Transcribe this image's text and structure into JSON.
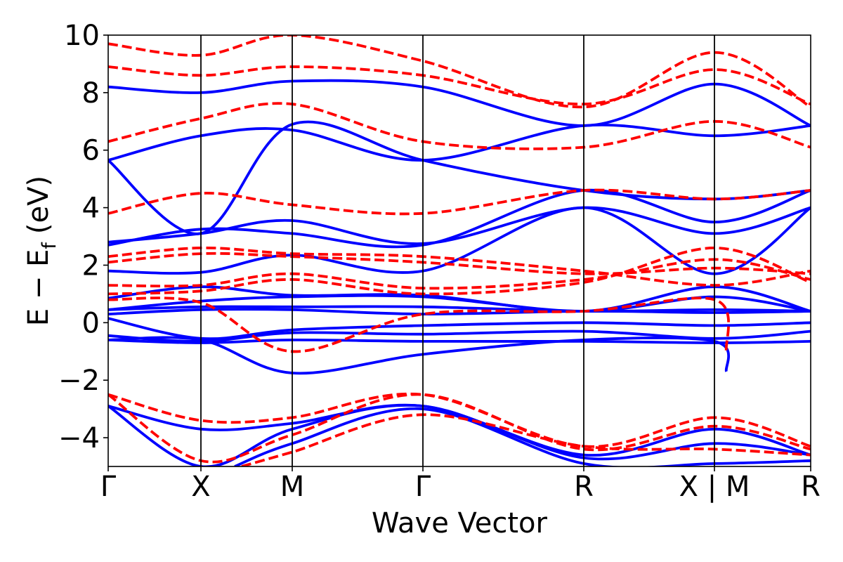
{
  "chart_data": {
    "type": "line",
    "xlabel": "Wave Vector",
    "ylabel": "E − E",
    "ylabel_subscript": "f",
    "ylabel_unit": "(eV)",
    "ylim": [
      -5,
      10
    ],
    "yticks": [
      -4,
      -2,
      0,
      2,
      4,
      6,
      8,
      10
    ],
    "ytick_labels": [
      "−4",
      "−2",
      "0",
      "2",
      "4",
      "6",
      "8",
      "10"
    ],
    "xlim": [
      0,
      1
    ],
    "kpoints": [
      {
        "label": "Γ",
        "x": 0.0
      },
      {
        "label": "X",
        "x": 0.132
      },
      {
        "label": "M",
        "x": 0.262
      },
      {
        "label": "Γ",
        "x": 0.448
      },
      {
        "label": "R",
        "x": 0.677
      },
      {
        "label": "X | M",
        "x": 0.863
      },
      {
        "label": "R",
        "x": 1.0
      }
    ],
    "grid": false,
    "legend": "none",
    "series_styles": [
      {
        "color": "#0000ff",
        "style": "solid"
      },
      {
        "color": "#ff0000",
        "style": "dashed"
      }
    ],
    "series": [
      {
        "color": "#0000ff",
        "style": "solid",
        "points": [
          [
            0,
            -0.6
          ],
          [
            0.132,
            -0.7
          ],
          [
            0.262,
            -0.6
          ],
          [
            0.448,
            -0.65
          ],
          [
            0.677,
            -0.65
          ],
          [
            0.863,
            -0.7
          ],
          [
            1.0,
            -0.65
          ]
        ]
      },
      {
        "color": "#0000ff",
        "style": "solid",
        "points": [
          [
            0,
            -0.45
          ],
          [
            0.132,
            -0.65
          ],
          [
            0.262,
            -0.35
          ],
          [
            0.448,
            -0.4
          ],
          [
            0.677,
            -0.3
          ],
          [
            0.863,
            -0.55
          ],
          [
            1.0,
            -0.3
          ]
        ]
      },
      {
        "color": "#0000ff",
        "style": "solid",
        "points": [
          [
            0,
            0.15
          ],
          [
            0.132,
            -0.55
          ],
          [
            0.262,
            -0.25
          ],
          [
            0.448,
            -0.1
          ],
          [
            0.677,
            0.0
          ],
          [
            0.863,
            -0.1
          ],
          [
            1.0,
            0.0
          ]
        ]
      },
      {
        "color": "#0000ff",
        "style": "solid",
        "points": [
          [
            0,
            0.3
          ],
          [
            0.132,
            0.45
          ],
          [
            0.262,
            0.45
          ],
          [
            0.448,
            0.3
          ],
          [
            0.677,
            0.4
          ],
          [
            0.863,
            0.35
          ],
          [
            1.0,
            0.4
          ]
        ]
      },
      {
        "color": "#0000ff",
        "style": "solid",
        "points": [
          [
            0,
            0.45
          ],
          [
            0.132,
            0.55
          ],
          [
            0.262,
            0.55
          ],
          [
            0.448,
            0.55
          ],
          [
            0.677,
            0.4
          ],
          [
            0.863,
            0.45
          ],
          [
            1.0,
            0.4
          ]
        ]
      },
      {
        "color": "#0000ff",
        "style": "solid",
        "points": [
          [
            0,
            0.45
          ],
          [
            0.132,
            0.75
          ],
          [
            0.262,
            0.9
          ],
          [
            0.448,
            0.9
          ],
          [
            0.677,
            0.4
          ],
          [
            0.863,
            0.9
          ],
          [
            1.0,
            0.4
          ]
        ]
      },
      {
        "color": "#0000ff",
        "style": "solid",
        "points": [
          [
            0,
            0.85
          ],
          [
            0.132,
            1.25
          ],
          [
            0.262,
            0.95
          ],
          [
            0.448,
            0.95
          ],
          [
            0.677,
            0.4
          ],
          [
            0.863,
            1.25
          ],
          [
            1.0,
            0.4
          ]
        ]
      },
      {
        "color": "#0000ff",
        "style": "solid",
        "points": [
          [
            0,
            -0.6
          ],
          [
            0.132,
            -0.6
          ],
          [
            0.262,
            -1.75
          ],
          [
            0.448,
            -1.1
          ],
          [
            0.677,
            -0.6
          ],
          [
            0.863,
            -0.65
          ],
          [
            0.88,
            -1.7
          ]
        ]
      },
      {
        "color": "#0000ff",
        "style": "solid",
        "points": [
          [
            0,
            1.8
          ],
          [
            0.132,
            1.75
          ],
          [
            0.262,
            2.35
          ],
          [
            0.448,
            1.8
          ],
          [
            0.677,
            4.0
          ],
          [
            0.863,
            1.7
          ],
          [
            1.0,
            4.0
          ]
        ]
      },
      {
        "color": "#0000ff",
        "style": "solid",
        "points": [
          [
            0,
            2.8
          ],
          [
            0.132,
            3.1
          ],
          [
            0.262,
            3.55
          ],
          [
            0.448,
            2.75
          ],
          [
            0.677,
            4.0
          ],
          [
            0.863,
            3.1
          ],
          [
            1.0,
            4.0
          ]
        ]
      },
      {
        "color": "#0000ff",
        "style": "solid",
        "points": [
          [
            0,
            2.7
          ],
          [
            0.132,
            3.25
          ],
          [
            0.262,
            3.1
          ],
          [
            0.448,
            2.7
          ],
          [
            0.677,
            4.6
          ],
          [
            0.863,
            3.5
          ],
          [
            1.0,
            4.6
          ]
        ]
      },
      {
        "color": "#0000ff",
        "style": "solid",
        "points": [
          [
            0,
            5.65
          ],
          [
            0.132,
            3.1
          ],
          [
            0.262,
            6.9
          ],
          [
            0.448,
            5.65
          ],
          [
            0.677,
            4.6
          ],
          [
            0.863,
            4.3
          ],
          [
            1.0,
            4.6
          ]
        ]
      },
      {
        "color": "#0000ff",
        "style": "solid",
        "points": [
          [
            0,
            5.65
          ],
          [
            0.132,
            6.5
          ],
          [
            0.262,
            6.7
          ],
          [
            0.448,
            5.65
          ],
          [
            0.677,
            6.85
          ],
          [
            0.863,
            6.5
          ],
          [
            1.0,
            6.85
          ]
        ]
      },
      {
        "color": "#0000ff",
        "style": "solid",
        "points": [
          [
            0,
            8.2
          ],
          [
            0.132,
            8.0
          ],
          [
            0.262,
            8.4
          ],
          [
            0.448,
            8.2
          ],
          [
            0.677,
            6.85
          ],
          [
            0.863,
            8.3
          ],
          [
            1.0,
            6.85
          ]
        ]
      },
      {
        "color": "#0000ff",
        "style": "solid",
        "points": [
          [
            0,
            -2.9
          ],
          [
            0.132,
            -3.7
          ],
          [
            0.262,
            -3.5
          ],
          [
            0.448,
            -2.9
          ],
          [
            0.677,
            -4.6
          ],
          [
            0.863,
            -3.7
          ],
          [
            1.0,
            -4.6
          ]
        ]
      },
      {
        "color": "#0000ff",
        "style": "solid",
        "points": [
          [
            0,
            -2.9
          ],
          [
            0.132,
            -5.0
          ],
          [
            0.262,
            -3.7
          ],
          [
            0.448,
            -2.9
          ],
          [
            0.677,
            -4.7
          ],
          [
            0.863,
            -4.2
          ],
          [
            1.0,
            -4.6
          ]
        ]
      },
      {
        "color": "#0000ff",
        "style": "solid",
        "points": [
          [
            0.18,
            -5.0
          ],
          [
            0.262,
            -4.2
          ],
          [
            0.448,
            -3.0
          ],
          [
            0.677,
            -4.9
          ],
          [
            0.863,
            -4.9
          ],
          [
            1.0,
            -4.8
          ]
        ]
      },
      {
        "color": "#ff0000",
        "style": "dashed",
        "points": [
          [
            0,
            0.8
          ],
          [
            0.132,
            0.7
          ],
          [
            0.262,
            -1.0
          ],
          [
            0.448,
            0.3
          ],
          [
            0.677,
            0.4
          ],
          [
            0.863,
            0.8
          ],
          [
            0.88,
            -1.0
          ]
        ]
      },
      {
        "color": "#ff0000",
        "style": "dashed",
        "points": [
          [
            0,
            1.0
          ],
          [
            0.132,
            1.1
          ],
          [
            0.262,
            1.5
          ],
          [
            0.448,
            1.0
          ],
          [
            0.677,
            1.4
          ],
          [
            0.863,
            2.6
          ],
          [
            1.0,
            1.4
          ]
        ]
      },
      {
        "color": "#ff0000",
        "style": "dashed",
        "points": [
          [
            0,
            1.3
          ],
          [
            0.132,
            1.3
          ],
          [
            0.262,
            1.7
          ],
          [
            0.448,
            1.2
          ],
          [
            0.677,
            1.5
          ],
          [
            0.863,
            2.2
          ],
          [
            1.0,
            1.5
          ]
        ]
      },
      {
        "color": "#ff0000",
        "style": "dashed",
        "points": [
          [
            0,
            2.1
          ],
          [
            0.132,
            2.4
          ],
          [
            0.262,
            2.3
          ],
          [
            0.448,
            2.1
          ],
          [
            0.677,
            1.7
          ],
          [
            0.863,
            1.9
          ],
          [
            1.0,
            1.7
          ]
        ]
      },
      {
        "color": "#ff0000",
        "style": "dashed",
        "points": [
          [
            0,
            2.3
          ],
          [
            0.132,
            2.6
          ],
          [
            0.262,
            2.4
          ],
          [
            0.448,
            2.3
          ],
          [
            0.677,
            1.8
          ],
          [
            0.863,
            1.3
          ],
          [
            1.0,
            1.8
          ]
        ]
      },
      {
        "color": "#ff0000",
        "style": "dashed",
        "points": [
          [
            0,
            3.8
          ],
          [
            0.132,
            4.5
          ],
          [
            0.262,
            4.1
          ],
          [
            0.448,
            3.8
          ],
          [
            0.677,
            4.6
          ],
          [
            0.863,
            4.3
          ],
          [
            1.0,
            4.6
          ]
        ]
      },
      {
        "color": "#ff0000",
        "style": "dashed",
        "points": [
          [
            0,
            6.3
          ],
          [
            0.132,
            7.1
          ],
          [
            0.262,
            7.6
          ],
          [
            0.448,
            6.3
          ],
          [
            0.677,
            6.1
          ],
          [
            0.863,
            7.0
          ],
          [
            1.0,
            6.1
          ]
        ]
      },
      {
        "color": "#ff0000",
        "style": "dashed",
        "points": [
          [
            0,
            8.9
          ],
          [
            0.132,
            8.6
          ],
          [
            0.262,
            8.9
          ],
          [
            0.448,
            8.6
          ],
          [
            0.677,
            7.6
          ],
          [
            0.863,
            8.8
          ],
          [
            1.0,
            7.6
          ]
        ]
      },
      {
        "color": "#ff0000",
        "style": "dashed",
        "points": [
          [
            0,
            9.7
          ],
          [
            0.132,
            9.3
          ],
          [
            0.262,
            10.0
          ],
          [
            0.448,
            9.1
          ],
          [
            0.677,
            7.5
          ],
          [
            0.863,
            9.4
          ],
          [
            1.0,
            7.5
          ]
        ]
      },
      {
        "color": "#ff0000",
        "style": "dashed",
        "points": [
          [
            0,
            -2.5
          ],
          [
            0.132,
            -3.4
          ],
          [
            0.262,
            -3.3
          ],
          [
            0.448,
            -2.5
          ],
          [
            0.677,
            -4.3
          ],
          [
            0.863,
            -3.3
          ],
          [
            1.0,
            -4.3
          ]
        ]
      },
      {
        "color": "#ff0000",
        "style": "dashed",
        "points": [
          [
            0,
            -2.5
          ],
          [
            0.132,
            -4.8
          ],
          [
            0.262,
            -3.9
          ],
          [
            0.448,
            -2.5
          ],
          [
            0.677,
            -4.4
          ],
          [
            0.863,
            -3.6
          ],
          [
            1.0,
            -4.4
          ]
        ]
      },
      {
        "color": "#ff0000",
        "style": "dashed",
        "points": [
          [
            0.19,
            -5.0
          ],
          [
            0.262,
            -4.5
          ],
          [
            0.448,
            -3.2
          ],
          [
            0.677,
            -4.3
          ],
          [
            0.863,
            -4.4
          ],
          [
            1.0,
            -4.6
          ]
        ]
      }
    ]
  }
}
